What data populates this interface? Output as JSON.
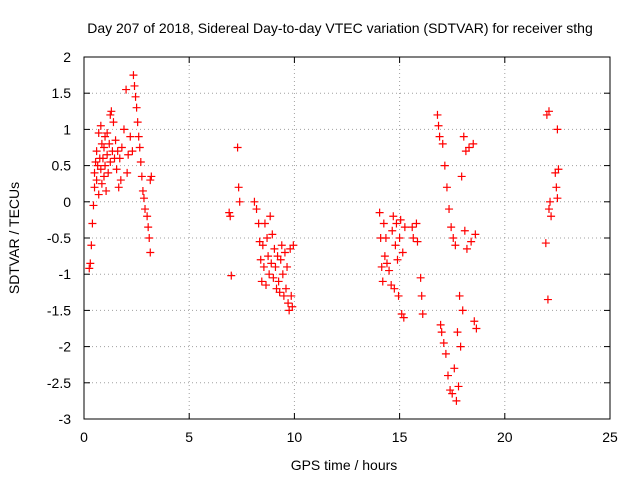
{
  "chart_data": {
    "type": "scatter",
    "title": "Day 207 of 2018, Sidereal Day-to-day VTEC variation (SDTVAR) for receiver sthg",
    "xlabel": "GPS time / hours",
    "ylabel": "SDTVAR / TECUs",
    "xlim": [
      0,
      25
    ],
    "ylim": [
      -3,
      2
    ],
    "xticks": [
      0,
      5,
      10,
      15,
      20,
      25
    ],
    "yticks": [
      2,
      1.5,
      1,
      0.5,
      0,
      -0.5,
      -1,
      -1.5,
      -2,
      -2.5,
      -3
    ],
    "xtick_labels": [
      "0",
      "5",
      "10",
      "15",
      "20",
      "25"
    ],
    "ytick_labels": [
      "2",
      "1.5",
      "1",
      "0.5",
      "0",
      "-0.5",
      "-1",
      "-1.5",
      "-2",
      "-2.5",
      "-3"
    ],
    "grid": true,
    "marker": "+",
    "series": [
      {
        "name": "SDTVAR",
        "color": "#ff0000",
        "points": [
          [
            0.25,
            -0.92
          ],
          [
            0.3,
            -0.85
          ],
          [
            0.35,
            -0.6
          ],
          [
            0.4,
            -0.3
          ],
          [
            0.45,
            -0.05
          ],
          [
            0.5,
            0.2
          ],
          [
            0.5,
            0.4
          ],
          [
            0.55,
            0.55
          ],
          [
            0.6,
            0.7
          ],
          [
            0.6,
            0.3
          ],
          [
            0.65,
            0.5
          ],
          [
            0.7,
            0.95
          ],
          [
            0.7,
            0.1
          ],
          [
            0.75,
            0.6
          ],
          [
            0.8,
            1.05
          ],
          [
            0.8,
            0.45
          ],
          [
            0.85,
            0.25
          ],
          [
            0.85,
            0.8
          ],
          [
            0.9,
            0.6
          ],
          [
            0.95,
            0.75
          ],
          [
            0.95,
            0.35
          ],
          [
            1.0,
            0.9
          ],
          [
            1.0,
            0.5
          ],
          [
            1.05,
            0.15
          ],
          [
            1.1,
            0.65
          ],
          [
            1.1,
            0.95
          ],
          [
            1.15,
            0.4
          ],
          [
            1.2,
            0.8
          ],
          [
            1.25,
            1.2
          ],
          [
            1.25,
            0.55
          ],
          [
            1.3,
            1.25
          ],
          [
            1.35,
            0.7
          ],
          [
            1.4,
            1.1
          ],
          [
            1.45,
            0.6
          ],
          [
            1.5,
            0.85
          ],
          [
            1.55,
            0.45
          ],
          [
            1.6,
            0.7
          ],
          [
            1.65,
            0.2
          ],
          [
            1.7,
            0.6
          ],
          [
            1.75,
            0.3
          ],
          [
            1.8,
            0.75
          ],
          [
            1.9,
            1.0
          ],
          [
            2.0,
            1.55
          ],
          [
            2.05,
            0.4
          ],
          [
            2.1,
            0.65
          ],
          [
            2.2,
            0.9
          ],
          [
            2.3,
            0.7
          ],
          [
            2.35,
            1.75
          ],
          [
            2.4,
            1.6
          ],
          [
            2.45,
            1.45
          ],
          [
            2.5,
            1.3
          ],
          [
            2.55,
            1.1
          ],
          [
            2.6,
            0.9
          ],
          [
            2.65,
            0.75
          ],
          [
            2.7,
            0.55
          ],
          [
            2.75,
            0.35
          ],
          [
            2.8,
            0.15
          ],
          [
            2.85,
            0.05
          ],
          [
            2.9,
            -0.1
          ],
          [
            3.0,
            -0.2
          ],
          [
            3.05,
            -0.35
          ],
          [
            3.1,
            -0.5
          ],
          [
            3.15,
            -0.7
          ],
          [
            3.15,
            0.3
          ],
          [
            3.2,
            0.35
          ],
          [
            6.9,
            -0.15
          ],
          [
            6.95,
            -0.2
          ],
          [
            7.0,
            -1.02
          ],
          [
            7.3,
            0.75
          ],
          [
            7.35,
            0.2
          ],
          [
            7.4,
            0.0
          ],
          [
            8.1,
            0.0
          ],
          [
            8.2,
            -0.1
          ],
          [
            8.3,
            -0.3
          ],
          [
            8.35,
            -0.55
          ],
          [
            8.4,
            -0.8
          ],
          [
            8.45,
            -1.1
          ],
          [
            8.5,
            -0.6
          ],
          [
            8.55,
            -0.9
          ],
          [
            8.6,
            -0.3
          ],
          [
            8.65,
            -1.15
          ],
          [
            8.7,
            -0.5
          ],
          [
            8.75,
            -0.75
          ],
          [
            8.8,
            -1.0
          ],
          [
            8.85,
            -0.2
          ],
          [
            8.9,
            -0.85
          ],
          [
            8.95,
            -0.45
          ],
          [
            9.0,
            -1.05
          ],
          [
            9.05,
            -0.65
          ],
          [
            9.1,
            -0.9
          ],
          [
            9.15,
            -1.2
          ],
          [
            9.2,
            -0.75
          ],
          [
            9.25,
            -1.1
          ],
          [
            9.3,
            -1.25
          ],
          [
            9.35,
            -0.8
          ],
          [
            9.4,
            -0.6
          ],
          [
            9.45,
            -1.0
          ],
          [
            9.5,
            -1.3
          ],
          [
            9.55,
            -0.7
          ],
          [
            9.6,
            -1.2
          ],
          [
            9.65,
            -0.9
          ],
          [
            9.7,
            -1.4
          ],
          [
            9.75,
            -1.5
          ],
          [
            9.8,
            -0.65
          ],
          [
            9.85,
            -1.3
          ],
          [
            9.9,
            -1.45
          ],
          [
            9.95,
            -0.6
          ],
          [
            14.05,
            -0.15
          ],
          [
            14.1,
            -0.5
          ],
          [
            14.15,
            -0.9
          ],
          [
            14.2,
            -1.1
          ],
          [
            14.25,
            -0.3
          ],
          [
            14.3,
            -0.75
          ],
          [
            14.35,
            -0.5
          ],
          [
            14.4,
            -0.85
          ],
          [
            14.5,
            -0.95
          ],
          [
            14.6,
            -1.15
          ],
          [
            14.65,
            -0.4
          ],
          [
            14.7,
            -0.2
          ],
          [
            14.75,
            -1.2
          ],
          [
            14.8,
            -0.6
          ],
          [
            14.85,
            -0.3
          ],
          [
            14.9,
            -0.8
          ],
          [
            14.95,
            -1.3
          ],
          [
            15.0,
            -0.5
          ],
          [
            15.05,
            -0.25
          ],
          [
            15.1,
            -1.55
          ],
          [
            15.15,
            -0.7
          ],
          [
            15.2,
            -1.6
          ],
          [
            15.25,
            -0.35
          ],
          [
            15.6,
            -0.35
          ],
          [
            15.65,
            -0.5
          ],
          [
            15.8,
            -0.3
          ],
          [
            15.85,
            -0.55
          ],
          [
            16.0,
            -1.05
          ],
          [
            16.05,
            -1.3
          ],
          [
            16.1,
            -1.55
          ],
          [
            16.8,
            1.2
          ],
          [
            16.85,
            1.05
          ],
          [
            16.9,
            0.9
          ],
          [
            16.95,
            -1.7
          ],
          [
            17.0,
            -1.8
          ],
          [
            17.05,
            0.8
          ],
          [
            17.1,
            -1.95
          ],
          [
            17.15,
            0.5
          ],
          [
            17.2,
            -2.1
          ],
          [
            17.25,
            0.2
          ],
          [
            17.3,
            -2.4
          ],
          [
            17.35,
            -0.1
          ],
          [
            17.4,
            -2.6
          ],
          [
            17.45,
            -0.35
          ],
          [
            17.5,
            -2.65
          ],
          [
            17.55,
            -0.5
          ],
          [
            17.6,
            -2.3
          ],
          [
            17.65,
            -0.6
          ],
          [
            17.7,
            -2.75
          ],
          [
            17.75,
            -1.8
          ],
          [
            17.8,
            -2.55
          ],
          [
            17.85,
            -1.3
          ],
          [
            17.9,
            -2.0
          ],
          [
            17.95,
            0.35
          ],
          [
            18.0,
            -1.5
          ],
          [
            18.05,
            0.9
          ],
          [
            18.1,
            -0.4
          ],
          [
            18.15,
            0.7
          ],
          [
            18.2,
            -0.65
          ],
          [
            18.3,
            0.75
          ],
          [
            18.4,
            -0.55
          ],
          [
            18.5,
            0.8
          ],
          [
            18.55,
            -1.65
          ],
          [
            18.6,
            -0.45
          ],
          [
            18.65,
            -1.75
          ],
          [
            21.95,
            -0.57
          ],
          [
            22.0,
            1.2
          ],
          [
            22.05,
            -1.35
          ],
          [
            22.1,
            1.25
          ],
          [
            22.1,
            -0.1
          ],
          [
            22.15,
            0.0
          ],
          [
            22.2,
            -0.2
          ],
          [
            22.4,
            0.4
          ],
          [
            22.45,
            0.2
          ],
          [
            22.5,
            1.0
          ],
          [
            22.5,
            0.05
          ],
          [
            22.55,
            0.45
          ]
        ]
      }
    ]
  }
}
